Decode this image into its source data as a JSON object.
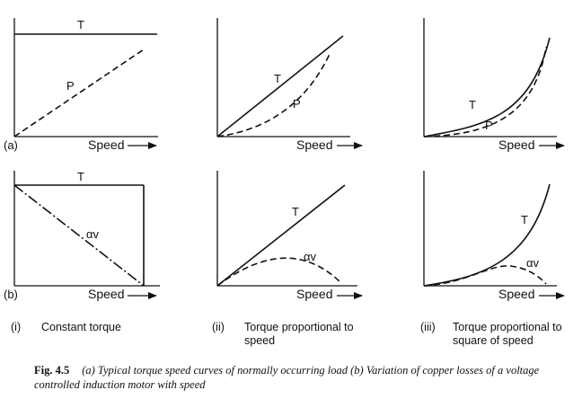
{
  "figure": {
    "number": "Fig. 4.5",
    "caption": "(a) Typical torque speed curves of normally occurring load (b) Variation of copper losses of a voltage controlled induction motor with speed"
  },
  "rows": [
    {
      "tag": "(a)"
    },
    {
      "tag": "(b)"
    }
  ],
  "panels": [
    {
      "id": "a-i",
      "labels": [
        "T",
        "P"
      ],
      "xlabel": "Speed"
    },
    {
      "id": "a-ii",
      "labels": [
        "T",
        "P"
      ],
      "xlabel": "Speed"
    },
    {
      "id": "a-iii",
      "labels": [
        "T",
        "P"
      ],
      "xlabel": "Speed"
    },
    {
      "id": "b-i",
      "labels": [
        "T",
        "αv"
      ],
      "xlabel": "Speed"
    },
    {
      "id": "b-ii",
      "labels": [
        "T",
        "αv"
      ],
      "xlabel": "Speed"
    },
    {
      "id": "b-iii",
      "labels": [
        "T",
        "αv"
      ],
      "xlabel": "Speed"
    }
  ],
  "columns": [
    {
      "num": "(i)",
      "title": "Constant torque"
    },
    {
      "num": "(ii)",
      "title": "Torque proportional to speed"
    },
    {
      "num": "(iii)",
      "title": "Torque proportional to square of speed"
    }
  ]
}
